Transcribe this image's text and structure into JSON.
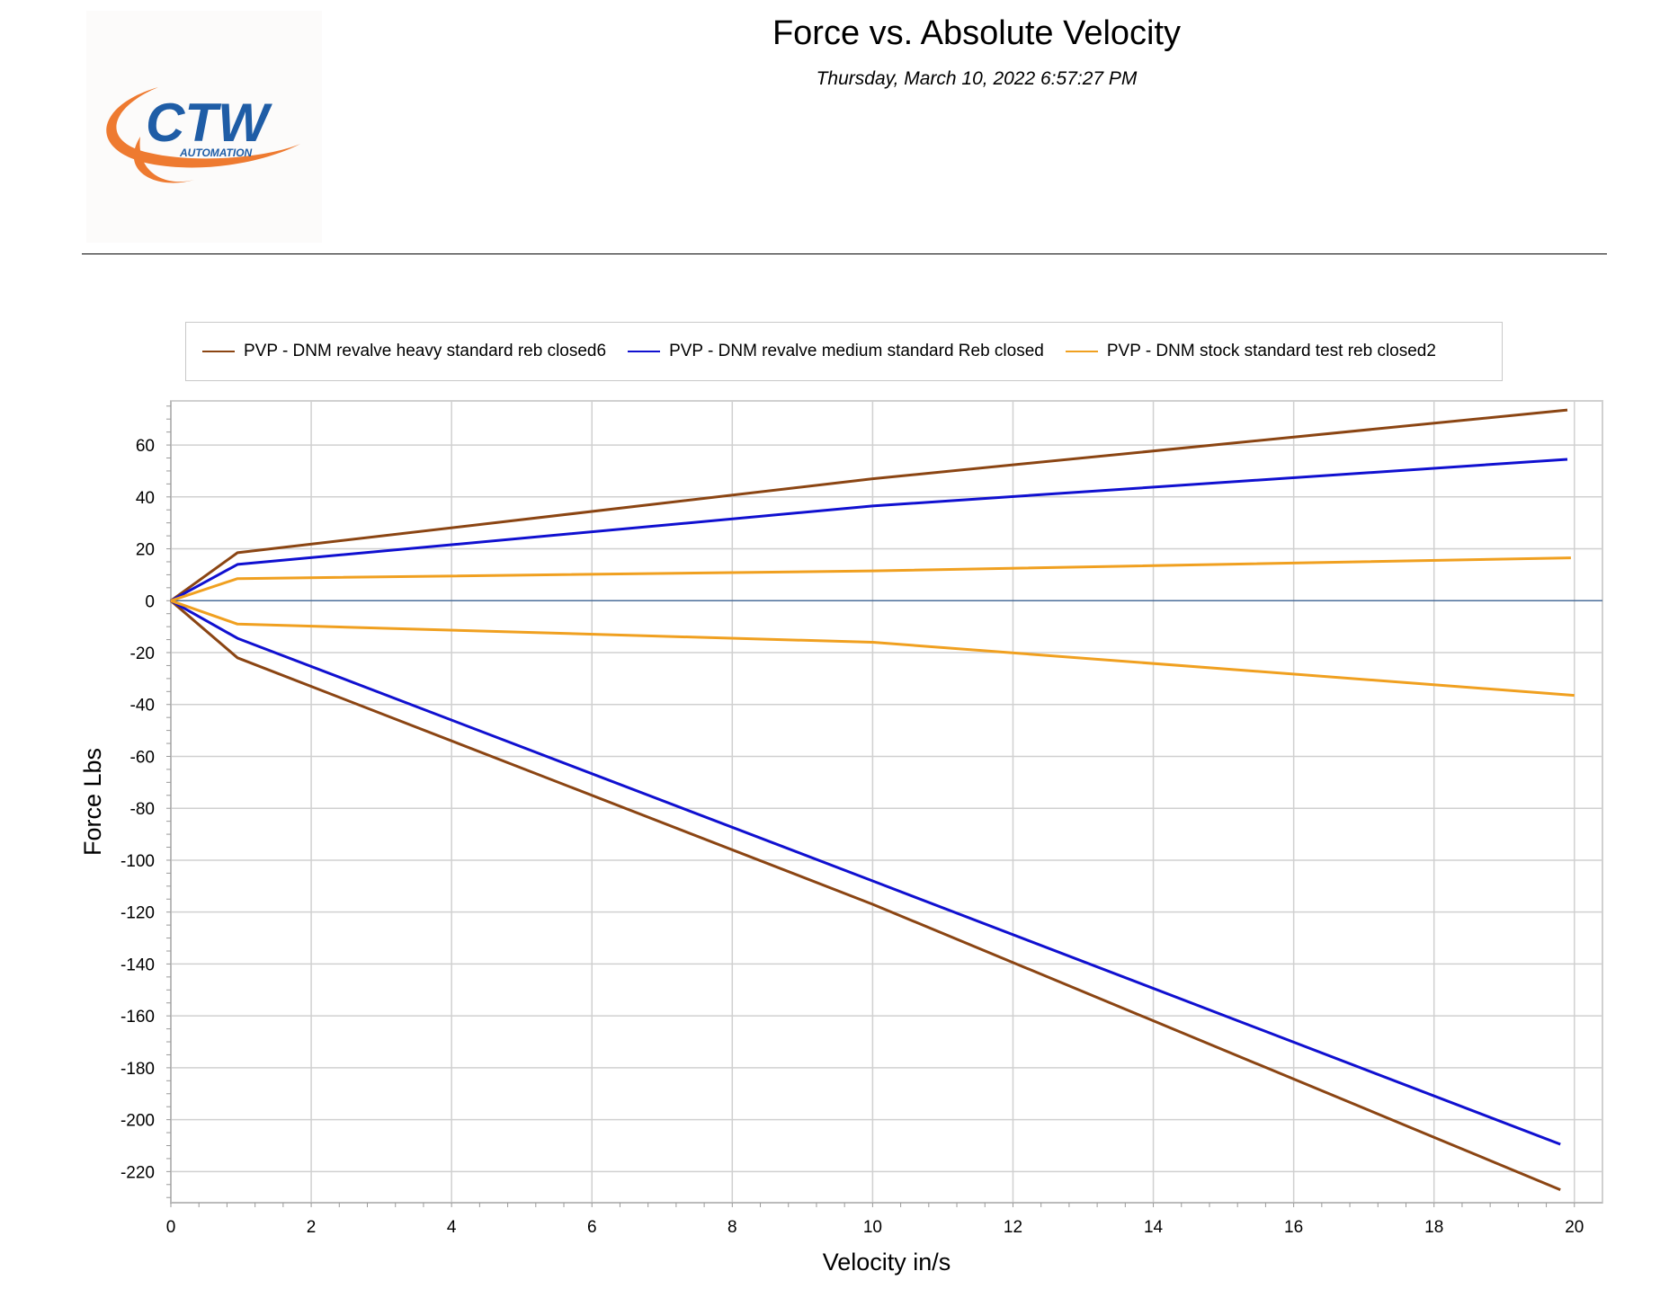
{
  "header": {
    "title": "Force vs. Absolute Velocity",
    "timestamp": "Thursday, March 10, 2022 6:57:27 PM",
    "logo_text": "CTW",
    "logo_subtext": "AUTOMATION"
  },
  "colors": {
    "logo_blue": "#1f5da6",
    "logo_orange": "#ee7a30",
    "grid": "#d0d0d0",
    "zero_line": "#4b6e9a"
  },
  "chart_data": {
    "type": "line",
    "title": "Force vs. Absolute Velocity",
    "xlabel": "Velocity in/s",
    "ylabel": "Force Lbs",
    "xlim": [
      0,
      20.4
    ],
    "ylim": [
      -232,
      77
    ],
    "xticks": [
      0,
      2,
      4,
      6,
      8,
      10,
      12,
      14,
      16,
      18,
      20
    ],
    "yticks": [
      60,
      40,
      20,
      0,
      -20,
      -40,
      -60,
      -80,
      -100,
      -120,
      -140,
      -160,
      -180,
      -200,
      -220
    ],
    "grid": true,
    "legend_position": "top",
    "series": [
      {
        "name": "PVP - DNM revalve heavy standard reb closed6",
        "color": "#8b4513",
        "segments": [
          {
            "x": [
              0,
              0.95,
              10,
              19.9
            ],
            "y": [
              0,
              18.5,
              47,
              73.5
            ]
          },
          {
            "x": [
              0,
              0.95,
              10,
              19.8
            ],
            "y": [
              0,
              -22,
              -117,
              -227
            ]
          }
        ]
      },
      {
        "name": "PVP - DNM revalve medium standard Reb closed",
        "color": "#1010d0",
        "segments": [
          {
            "x": [
              0,
              0.95,
              10,
              19.9
            ],
            "y": [
              0,
              14,
              36.5,
              54.5
            ]
          },
          {
            "x": [
              0,
              0.95,
              10,
              19.8
            ],
            "y": [
              0,
              -14.5,
              -108,
              -209.5
            ]
          }
        ]
      },
      {
        "name": "PVP - DNM stock standard test reb closed2",
        "color": "#f0a020",
        "segments": [
          {
            "x": [
              0,
              0.95,
              10,
              19.95
            ],
            "y": [
              0,
              8.5,
              11.5,
              16.5
            ]
          },
          {
            "x": [
              0,
              0.95,
              10,
              20
            ],
            "y": [
              0,
              -9,
              -16,
              -36.5
            ]
          }
        ]
      }
    ]
  }
}
